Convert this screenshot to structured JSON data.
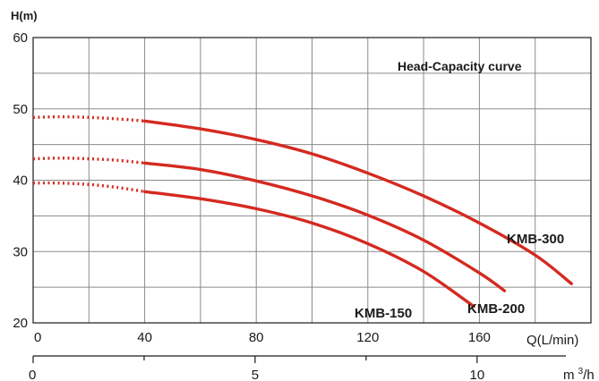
{
  "chart_data": {
    "type": "line",
    "title": "Head-Capacity curve",
    "ylabel": "H(m)",
    "xlabel": "Q(L/min)",
    "secondary_xlabel": "m³/h",
    "xlim": [
      0,
      200
    ],
    "ylim": [
      20,
      60
    ],
    "x_ticks": [
      0,
      40,
      80,
      120,
      160
    ],
    "y_ticks": [
      20,
      30,
      40,
      50,
      60
    ],
    "x_grid_step": 20,
    "y_grid_step": 5,
    "secondary_xlim": [
      0,
      12
    ],
    "secondary_x_ticks": [
      0,
      5,
      10
    ],
    "secondary_minor_ticks": [
      2.5,
      7.5
    ],
    "grid": true,
    "series": [
      {
        "name": "KMB-300",
        "dotted": {
          "x": [
            0,
            10,
            20,
            30,
            40
          ],
          "y": [
            48.8,
            48.9,
            48.8,
            48.6,
            48.3
          ]
        },
        "solid": {
          "x": [
            40,
            60,
            80,
            100,
            120,
            140,
            160,
            180,
            193
          ],
          "y": [
            48.3,
            47.2,
            45.7,
            43.7,
            41.0,
            37.8,
            34.0,
            29.5,
            25.5
          ]
        }
      },
      {
        "name": "KMB-200",
        "dotted": {
          "x": [
            0,
            10,
            20,
            30,
            40
          ],
          "y": [
            43.0,
            43.1,
            43.0,
            42.8,
            42.4
          ]
        },
        "solid": {
          "x": [
            40,
            60,
            80,
            100,
            120,
            140,
            160,
            169
          ],
          "y": [
            42.4,
            41.5,
            39.9,
            37.8,
            35.1,
            31.6,
            27.0,
            24.5
          ]
        }
      },
      {
        "name": "KMB-150",
        "dotted": {
          "x": [
            0,
            10,
            20,
            30,
            40
          ],
          "y": [
            39.6,
            39.6,
            39.4,
            39.0,
            38.4
          ]
        },
        "solid": {
          "x": [
            40,
            60,
            80,
            100,
            120,
            140,
            158
          ],
          "y": [
            38.4,
            37.4,
            36.0,
            34.0,
            31.1,
            27.2,
            22.3
          ]
        }
      }
    ],
    "colors": {
      "curve": "#d42a20",
      "grid": "#8a8a8a"
    }
  }
}
